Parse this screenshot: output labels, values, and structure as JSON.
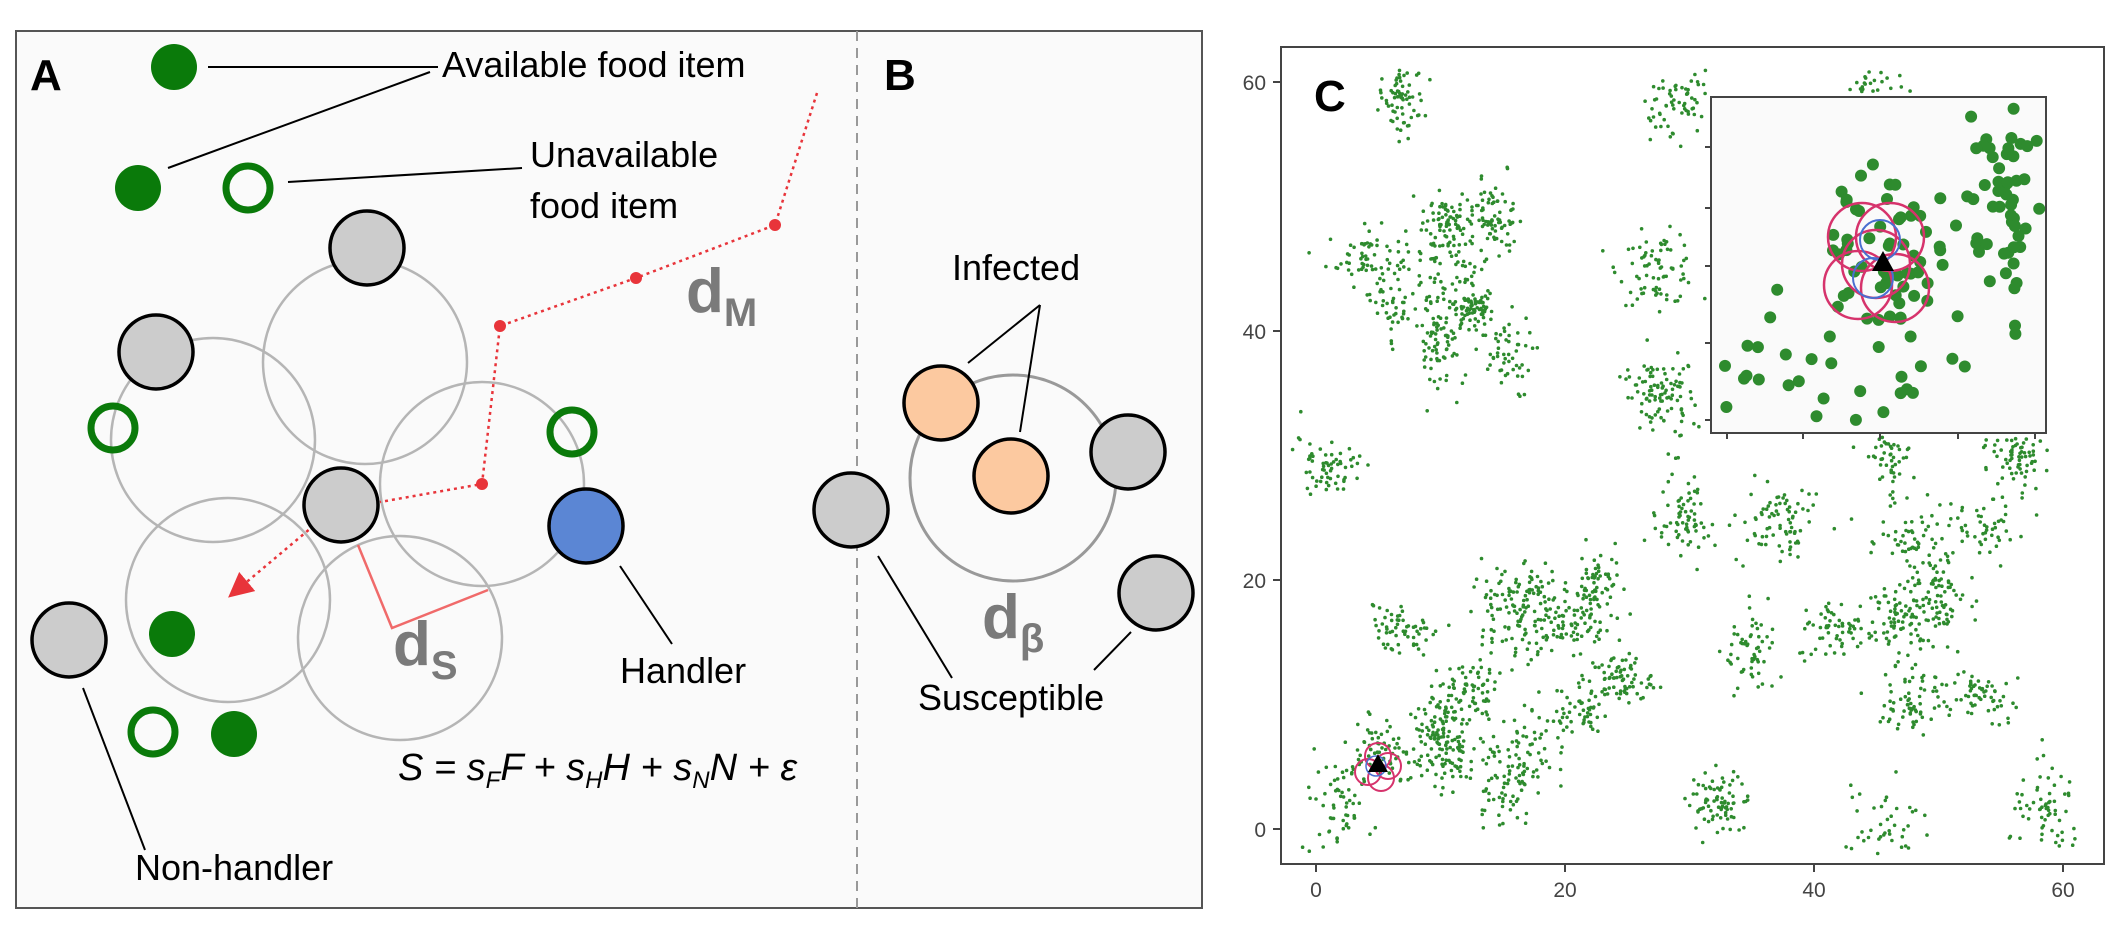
{
  "panelA": {
    "letter": "A",
    "available_label": "Available food item",
    "unavailable_label_line1": "Unavailable",
    "unavailable_label_line2": "food item",
    "handler_label": "Handler",
    "nonhandler_label": "Non-handler",
    "dist_movement": "d",
    "dist_movement_sub": "M",
    "dist_sensory": "d",
    "dist_sensory_sub": "S",
    "equation": {
      "lhs": "S = s",
      "sub1": "F",
      "t1": "F + s",
      "sub2": "H",
      "t2": "H + s",
      "sub3": "N",
      "t3": "N + ε"
    }
  },
  "panelB": {
    "letter": "B",
    "infected_label": "Infected",
    "susceptible_label": "Susceptible",
    "dist_transmission": "d",
    "dist_transmission_sub": "β"
  },
  "panelC": {
    "letter": "C",
    "x_ticks": [
      "0",
      "20",
      "40",
      "60"
    ],
    "y_ticks": [
      "0",
      "20",
      "40",
      "60"
    ]
  },
  "colors": {
    "food": "#0a7a0a",
    "individual": "#cccccc",
    "handler": "#5b86d4",
    "infected": "#fcc9a0",
    "movement_path": "#e8343a",
    "sensory_bracket": "#f06a6a",
    "panel_bg": "#fafafa",
    "scatter": "#2e8b2e",
    "inset_ring_red": "#d6336c",
    "inset_ring_blue": "#4a6fd0"
  },
  "chart_data": {
    "type": "scatter",
    "title": "",
    "xlabel": "",
    "ylabel": "",
    "xlim": [
      -3,
      63
    ],
    "ylim": [
      -3,
      63
    ],
    "xticks": [
      0,
      20,
      40,
      60
    ],
    "yticks": [
      0,
      20,
      40,
      60
    ],
    "grid": false,
    "series": [
      {
        "type": "food-patch-centers",
        "values": [
          [
            7,
            59
          ],
          [
            29,
            58
          ],
          [
            45,
            59
          ],
          [
            4,
            46
          ],
          [
            10,
            45
          ],
          [
            10.5,
            49
          ],
          [
            14,
            49
          ],
          [
            27.5,
            45
          ],
          [
            6,
            42
          ],
          [
            12.5,
            42
          ],
          [
            10,
            39
          ],
          [
            15,
            38
          ],
          [
            27,
            36
          ],
          [
            28,
            34
          ],
          [
            1,
            29
          ],
          [
            46,
            30
          ],
          [
            56,
            30
          ],
          [
            29.5,
            25
          ],
          [
            37.5,
            25
          ],
          [
            48,
            23
          ],
          [
            54,
            24
          ],
          [
            16,
            19
          ],
          [
            22.5,
            19
          ],
          [
            17,
            16
          ],
          [
            21,
            16.5
          ],
          [
            47,
            17
          ],
          [
            50,
            19
          ],
          [
            42,
            16
          ],
          [
            7,
            16
          ],
          [
            35,
            14
          ],
          [
            12.5,
            11.5
          ],
          [
            24.5,
            12
          ],
          [
            10,
            8
          ],
          [
            21,
            9
          ],
          [
            11,
            6
          ],
          [
            16.5,
            6
          ],
          [
            5,
            6
          ],
          [
            48,
            10.5
          ],
          [
            53,
            11
          ],
          [
            15,
            3
          ],
          [
            32.5,
            2
          ],
          [
            1.5,
            2
          ],
          [
            45.5,
            0.5
          ],
          [
            59,
            1
          ]
        ]
      },
      {
        "type": "focal-individual",
        "marker": "triangle",
        "values": [
          [
            5,
            5
          ]
        ]
      }
    ],
    "inset": {
      "type": "scatter",
      "axis_ticks": "unlabeled",
      "focal_individual": "triangle"
    }
  }
}
